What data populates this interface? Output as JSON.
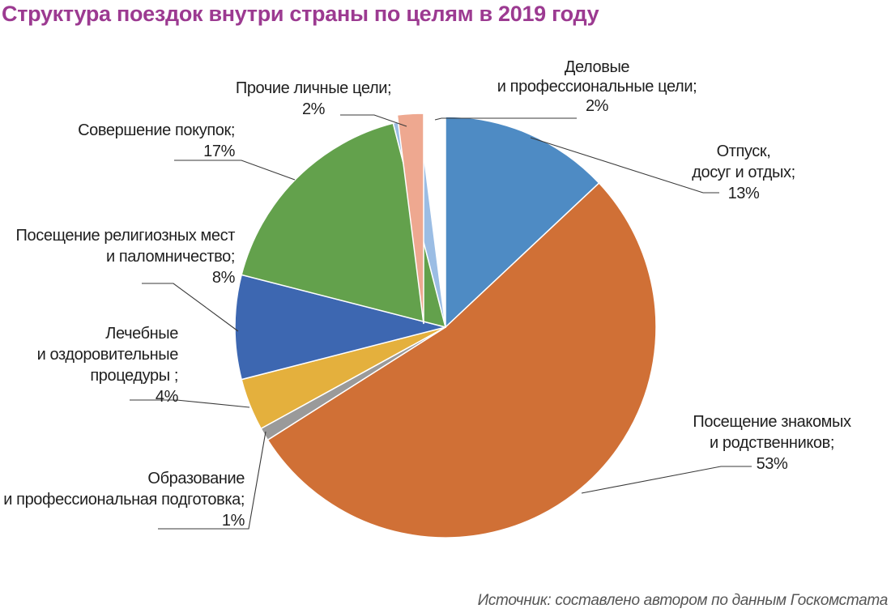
{
  "title": "Структура поездок внутри страны по целям в 2019 году",
  "source": "Источник: составлено автором по данным Госкомстата",
  "colors": {
    "title": "#9c3a91"
  },
  "chart_data": {
    "type": "pie",
    "title": "Структура поездок внутри страны по целям в 2019 году",
    "slices": [
      {
        "name": "Отпуск, досуг и отдых",
        "label_lines": [
          "Отпуск,",
          "досуг и отдых;"
        ],
        "value": 13,
        "value_label": "13%",
        "color": "#4e8bc4"
      },
      {
        "name": "Посещение знакомых и родственников",
        "label_lines": [
          "Посещение знакомых",
          "и родственников;"
        ],
        "value": 53,
        "value_label": "53%",
        "color": "#d07036"
      },
      {
        "name": "Образование и профессиональная подготовка",
        "label_lines": [
          "Образование",
          "и профессиональная подготовка;"
        ],
        "value": 1,
        "value_label": "1%",
        "color": "#9a9a9a"
      },
      {
        "name": "Лечебные и оздоровительные процедуры",
        "label_lines": [
          "Лечебные",
          "и оздоровительные",
          "процедуры ;"
        ],
        "value": 4,
        "value_label": "4%",
        "color": "#e4b03d"
      },
      {
        "name": "Посещение религиозных мест и паломничество",
        "label_lines": [
          "Посещение религиозных мест",
          "и паломничество;"
        ],
        "value": 8,
        "value_label": "8%",
        "color": "#3d67b1"
      },
      {
        "name": "Совершение покупок",
        "label_lines": [
          "Совершение покупок;"
        ],
        "value": 17,
        "value_label": "17%",
        "color": "#63a14c"
      },
      {
        "name": "Прочие личные цели",
        "label_lines": [
          "Прочие личные цели;"
        ],
        "value": 2,
        "value_label": "2%",
        "color": "#9bbde4"
      },
      {
        "name": "Деловые и профессиональные цели",
        "label_lines": [
          "Деловые",
          "и профессиональные цели;"
        ],
        "value": 2,
        "value_label": "2%",
        "color": "#eea890"
      }
    ],
    "start": "12 o'clock",
    "direction": "clockwise",
    "legend": "none",
    "data_labels": "outside with leader lines"
  }
}
